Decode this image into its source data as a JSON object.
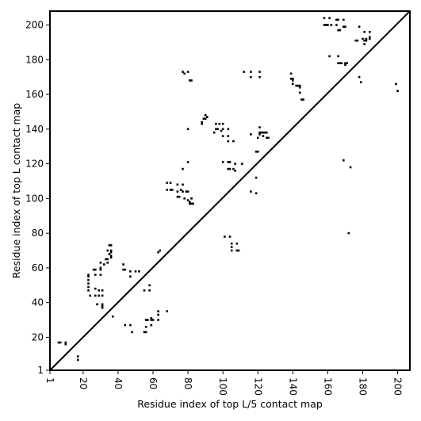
{
  "chart_data": {
    "type": "scatter",
    "xlabel": "Residue index of top L/5 contact map",
    "ylabel": "Residue index of top L contact map",
    "xlim": [
      1,
      207
    ],
    "ylim": [
      1,
      208
    ],
    "x_ticks": [
      1,
      20,
      40,
      60,
      80,
      100,
      120,
      140,
      160,
      180,
      200
    ],
    "y_ticks": [
      1,
      20,
      40,
      60,
      80,
      100,
      120,
      140,
      160,
      180,
      200
    ],
    "x_tick_labels": [
      "1",
      "20",
      "40",
      "60",
      "80",
      "100",
      "120",
      "140",
      "160",
      "180",
      "200"
    ],
    "y_tick_labels": [
      "1",
      "20",
      "40",
      "60",
      "80",
      "100",
      "120",
      "140",
      "160",
      "180",
      "200"
    ],
    "diagonal": true,
    "marker_color": "#000000",
    "series": [
      {
        "values": [
          [
            6,
            17
          ],
          [
            7,
            17
          ],
          [
            10,
            16
          ],
          [
            10,
            17
          ],
          [
            17,
            7
          ],
          [
            17,
            9
          ],
          [
            23,
            47
          ],
          [
            23,
            49
          ],
          [
            23,
            51
          ],
          [
            23,
            53
          ],
          [
            23,
            55
          ],
          [
            23,
            56
          ],
          [
            24,
            44
          ],
          [
            26,
            59
          ],
          [
            27,
            56
          ],
          [
            27,
            59
          ],
          [
            27,
            48
          ],
          [
            27,
            44
          ],
          [
            28,
            39
          ],
          [
            29,
            44
          ],
          [
            29,
            47
          ],
          [
            30,
            56
          ],
          [
            30,
            59
          ],
          [
            30,
            60
          ],
          [
            30,
            63
          ],
          [
            31,
            47
          ],
          [
            31,
            44
          ],
          [
            31,
            39
          ],
          [
            31,
            38
          ],
          [
            31,
            37
          ],
          [
            32,
            62
          ],
          [
            33,
            65
          ],
          [
            34,
            63
          ],
          [
            34,
            65
          ],
          [
            34,
            70
          ],
          [
            35,
            73
          ],
          [
            35,
            68
          ],
          [
            36,
            73
          ],
          [
            36,
            70
          ],
          [
            36,
            69
          ],
          [
            36,
            67
          ],
          [
            36,
            66
          ],
          [
            37,
            32
          ],
          [
            43,
            62
          ],
          [
            43,
            59
          ],
          [
            44,
            27
          ],
          [
            44,
            59
          ],
          [
            47,
            27
          ],
          [
            47,
            55
          ],
          [
            47,
            58
          ],
          [
            48,
            23
          ],
          [
            50,
            58
          ],
          [
            52,
            58
          ],
          [
            55,
            47
          ],
          [
            55,
            23
          ],
          [
            56,
            23
          ],
          [
            56,
            26
          ],
          [
            56,
            30
          ],
          [
            57,
            30
          ],
          [
            58,
            50
          ],
          [
            58,
            47
          ],
          [
            59,
            27
          ],
          [
            59,
            30
          ],
          [
            59,
            31
          ],
          [
            60,
            30
          ],
          [
            63,
            30
          ],
          [
            63,
            33
          ],
          [
            63,
            35
          ],
          [
            63,
            69
          ],
          [
            64,
            70
          ],
          [
            68,
            35
          ],
          [
            68,
            105
          ],
          [
            68,
            109
          ],
          [
            70,
            109
          ],
          [
            70,
            105
          ],
          [
            71,
            105
          ],
          [
            74,
            108
          ],
          [
            74,
            104
          ],
          [
            74,
            101
          ],
          [
            75,
            101
          ],
          [
            76,
            105
          ],
          [
            77,
            117
          ],
          [
            77,
            104
          ],
          [
            77,
            108
          ],
          [
            77,
            173
          ],
          [
            78,
            172
          ],
          [
            78,
            100
          ],
          [
            79,
            104
          ],
          [
            80,
            140
          ],
          [
            80,
            104
          ],
          [
            80,
            99
          ],
          [
            80,
            121
          ],
          [
            80,
            173
          ],
          [
            81,
            98
          ],
          [
            81,
            97
          ],
          [
            81,
            168
          ],
          [
            82,
            97
          ],
          [
            82,
            100
          ],
          [
            82,
            168
          ],
          [
            83,
            97
          ],
          [
            88,
            143
          ],
          [
            88,
            144
          ],
          [
            89,
            146
          ],
          [
            90,
            148
          ],
          [
            90,
            146
          ],
          [
            91,
            147
          ],
          [
            95,
            138
          ],
          [
            96,
            140
          ],
          [
            96,
            143
          ],
          [
            97,
            140
          ],
          [
            98,
            143
          ],
          [
            99,
            139
          ],
          [
            100,
            121
          ],
          [
            100,
            136
          ],
          [
            100,
            140
          ],
          [
            100,
            143
          ],
          [
            101,
            78
          ],
          [
            103,
            117
          ],
          [
            103,
            121
          ],
          [
            103,
            133
          ],
          [
            103,
            136
          ],
          [
            103,
            140
          ],
          [
            104,
            78
          ],
          [
            104,
            117
          ],
          [
            104,
            121
          ],
          [
            105,
            74
          ],
          [
            105,
            72
          ],
          [
            105,
            70
          ],
          [
            106,
            133
          ],
          [
            106,
            117
          ],
          [
            107,
            116
          ],
          [
            107,
            120
          ],
          [
            108,
            74
          ],
          [
            108,
            70
          ],
          [
            109,
            70
          ],
          [
            111,
            120
          ],
          [
            112,
            173
          ],
          [
            116,
            104
          ],
          [
            116,
            137
          ],
          [
            116,
            173
          ],
          [
            116,
            170
          ],
          [
            119,
            127
          ],
          [
            119,
            103
          ],
          [
            119,
            112
          ],
          [
            120,
            127
          ],
          [
            120,
            135
          ],
          [
            121,
            137
          ],
          [
            121,
            138
          ],
          [
            121,
            141
          ],
          [
            121,
            173
          ],
          [
            121,
            170
          ],
          [
            122,
            138
          ],
          [
            123,
            138
          ],
          [
            123,
            136
          ],
          [
            124,
            138
          ],
          [
            125,
            138
          ],
          [
            125,
            135
          ],
          [
            126,
            135
          ],
          [
            139,
            172
          ],
          [
            139,
            169
          ],
          [
            140,
            169
          ],
          [
            140,
            168
          ],
          [
            140,
            166
          ],
          [
            142,
            165
          ],
          [
            143,
            165
          ],
          [
            144,
            165
          ],
          [
            144,
            164
          ],
          [
            144,
            161
          ],
          [
            145,
            157
          ],
          [
            146,
            157
          ],
          [
            158,
            204
          ],
          [
            158,
            200
          ],
          [
            159,
            200
          ],
          [
            160,
            200
          ],
          [
            161,
            182
          ],
          [
            161,
            204
          ],
          [
            162,
            200
          ],
          [
            165,
            203
          ],
          [
            165,
            200
          ],
          [
            166,
            203
          ],
          [
            166,
            197
          ],
          [
            166,
            178
          ],
          [
            166,
            182
          ],
          [
            167,
            178
          ],
          [
            167,
            197
          ],
          [
            168,
            178
          ],
          [
            169,
            203
          ],
          [
            169,
            199
          ],
          [
            169,
            122
          ],
          [
            170,
            199
          ],
          [
            170,
            177
          ],
          [
            170,
            178
          ],
          [
            171,
            178
          ],
          [
            172,
            80
          ],
          [
            173,
            118
          ],
          [
            176,
            191
          ],
          [
            177,
            191
          ],
          [
            178,
            199
          ],
          [
            178,
            170
          ],
          [
            179,
            167
          ],
          [
            180,
            192
          ],
          [
            181,
            189
          ],
          [
            181,
            196
          ],
          [
            181,
            191
          ],
          [
            182,
            191
          ],
          [
            182,
            192
          ],
          [
            184,
            196
          ],
          [
            184,
            193
          ],
          [
            184,
            192
          ],
          [
            199,
            166
          ],
          [
            200,
            162
          ]
        ]
      }
    ]
  }
}
